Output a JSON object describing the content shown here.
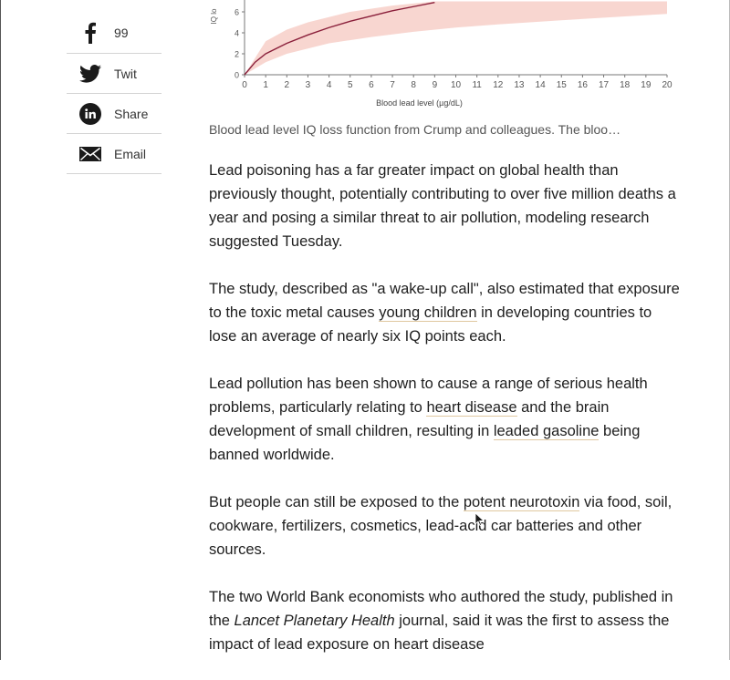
{
  "share": {
    "items": [
      {
        "icon": "facebook-icon",
        "label": "99"
      },
      {
        "icon": "twitter-icon",
        "label": "Twit"
      },
      {
        "icon": "linkedin-icon",
        "label": "Share"
      },
      {
        "icon": "email-icon",
        "label": "Email"
      }
    ]
  },
  "chart_data": {
    "type": "line",
    "ylabel": "IQ lo",
    "xlabel": "Blood lead level (µg/dL)",
    "x_ticks": [
      0,
      1,
      2,
      3,
      4,
      5,
      6,
      7,
      8,
      9,
      10,
      11,
      12,
      13,
      14,
      15,
      16,
      17,
      18,
      19,
      20
    ],
    "y_ticks": [
      0,
      2,
      4,
      6
    ],
    "xlim": [
      0,
      20
    ],
    "ylim": [
      0,
      7
    ],
    "series": [
      {
        "x": [
          0,
          0.5,
          1,
          2,
          3,
          4,
          5,
          6,
          7,
          8,
          9
        ],
        "y": [
          0,
          1.2,
          2.0,
          3.0,
          3.8,
          4.5,
          5.1,
          5.6,
          6.1,
          6.5,
          6.9
        ]
      }
    ],
    "band_upper": {
      "x": [
        0,
        1,
        2,
        3,
        5,
        7,
        9,
        12,
        15,
        20
      ],
      "y": [
        0,
        3.2,
        4.3,
        5.0,
        6.0,
        6.6,
        7.0,
        7.0,
        7.0,
        7.0
      ]
    },
    "band_lower": {
      "x": [
        0,
        1,
        2,
        4,
        6,
        8,
        10,
        12,
        15,
        20
      ],
      "y": [
        0,
        1.2,
        2.0,
        3.0,
        3.6,
        4.1,
        4.5,
        4.8,
        5.2,
        5.8
      ]
    },
    "colors": {
      "line": "#8a1f3a",
      "band": "#f5c8c0",
      "axis": "#777777"
    }
  },
  "caption": "Blood lead level IQ loss function from Crump and colleagues. The bloo…",
  "article": {
    "p1": "Lead poisoning has a far greater impact on global health than previously thought, potentially contributing to over five million deaths a year and posing a similar threat to air pollution, modeling research suggested Tuesday.",
    "p2_before": "The study, described as \"a wake-up call\", also estimated that exposure to the toxic metal causes ",
    "p2_link": "young children",
    "p2_after": " in developing countries to lose an average of nearly six IQ points each.",
    "p3_before": "Lead pollution has been shown to cause a range of serious health problems, particularly relating to ",
    "p3_link1": "heart disease",
    "p3_mid": " and the brain development of small children, resulting in ",
    "p3_link2": "leaded gasoline",
    "p3_after": " being banned worldwide.",
    "p4_before": "But people can still be exposed to the ",
    "p4_link": "potent neurotoxin",
    "p4_after": " via food, soil, cookware, fertilizers, cosmetics, lead-acid car batteries and other sources.",
    "p5_before": "The two World Bank economists who authored the study, published in the ",
    "p5_journal": "Lancet Planetary Health",
    "p5_after": " journal, said it was the first to assess the impact of lead exposure on heart disease"
  }
}
